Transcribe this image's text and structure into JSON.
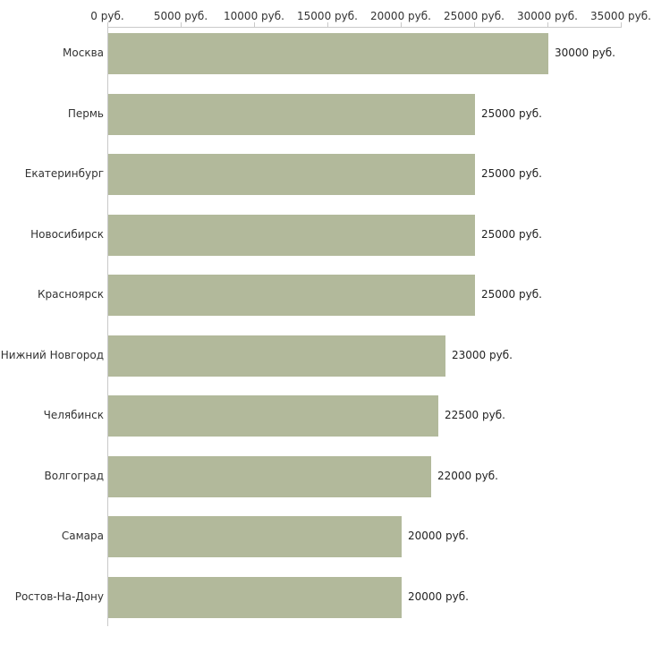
{
  "chart_data": {
    "type": "bar",
    "orientation": "horizontal",
    "title": "",
    "xlabel": "",
    "ylabel": "",
    "categories": [
      "Москва",
      "Пермь",
      "Екатеринбург",
      "Новосибирск",
      "Красноярск",
      "Нижний Новгород",
      "Челябинск",
      "Волгоград",
      "Самара",
      "Ростов-На-Дону"
    ],
    "values": [
      30000,
      25000,
      25000,
      25000,
      25000,
      23000,
      22500,
      22000,
      20000,
      20000
    ],
    "value_labels": [
      "30000 руб.",
      "25000 руб.",
      "25000 руб.",
      "25000 руб.",
      "25000 руб.",
      "23000 руб.",
      "22500 руб.",
      "22000 руб.",
      "20000 руб.",
      "20000 руб."
    ],
    "x_ticks": [
      0,
      5000,
      10000,
      15000,
      20000,
      25000,
      30000,
      35000
    ],
    "x_tick_labels": [
      "0 руб.",
      "5000 руб.",
      "10000 руб.",
      "15000 руб.",
      "20000 руб.",
      "25000 руб.",
      "30000 руб.",
      "35000 руб."
    ],
    "xlim": [
      0,
      35000
    ],
    "grid": false,
    "legend": "none",
    "bar_color": "#b2b99b",
    "axis_color": "#c9c9c9",
    "text_color": "#333333"
  }
}
